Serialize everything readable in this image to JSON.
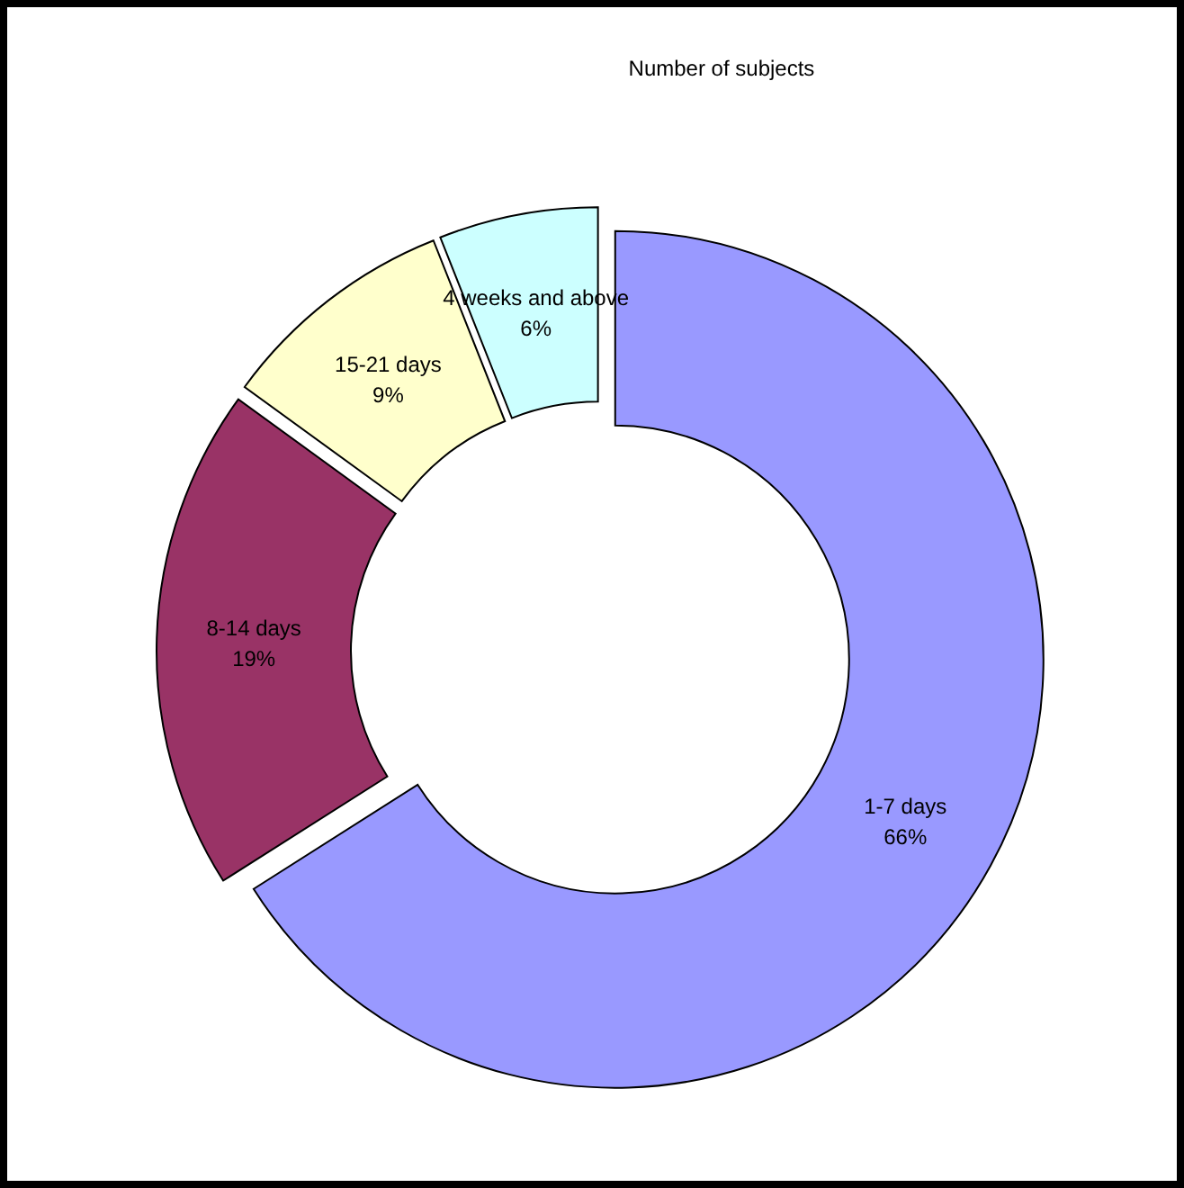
{
  "chart_data": {
    "type": "donut",
    "title": "Number of subjects",
    "categories": [
      "1-7 days",
      "8-14 days",
      "15-21 days",
      "4 weeks and above"
    ],
    "values": [
      66,
      19,
      9,
      6
    ],
    "colors": [
      "#9999ff",
      "#993366",
      "#ffffcc",
      "#ccffff"
    ],
    "value_labels": [
      "66%",
      "19%",
      "9%",
      "6%"
    ]
  }
}
